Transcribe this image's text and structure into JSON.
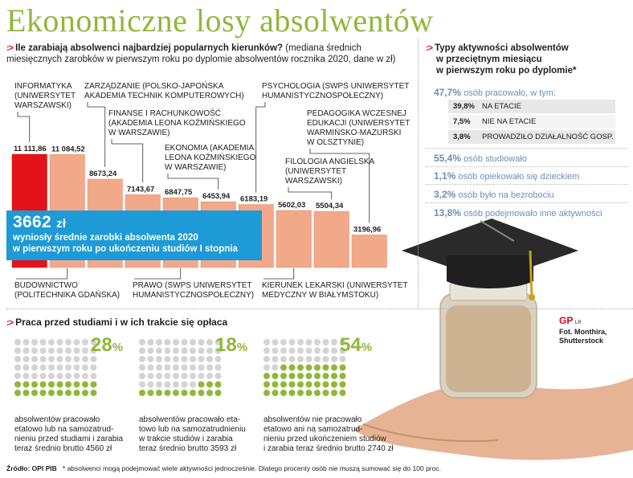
{
  "title": "Ekonomiczne losy absolwentów",
  "subtitle": {
    "bold": "Ile zarabiają absolwenci najbardziej popularnych kierunków?",
    "rest": "(mediana średnich miesięcznych zarobków w pierwszym roku po dyplomie absolwentów rocznika 2020, dane w zł)"
  },
  "chart_data": {
    "type": "bar",
    "title": "Ile zarabiają absolwenci najbardziej popularnych kierunków?",
    "ylabel": "",
    "categories": [
      "INFORMATYKA (UNIWERSYTET WARSZAWSKI)",
      "BUDOWNICTWO (POLITECHNIKA GDAŃSKA)",
      "ZARZĄDZANIE (POLSKO-JAPOŃSKA AKADEMIA TECHNIK KOMPUTEROWYCH)",
      "FINANSE I RACHUNKOWOŚĆ (AKADEMIA LEONA KOŹMIŃSKIEGO W WARSZAWIE)",
      "PRAWO (SWPS UNIWERSYTET HUMANISTYCZNOSPOŁECZNY)",
      "EKONOMIA (AKADEMIA LEONA KOŹMIŃSKIEGO W WARSZAWIE)",
      "PSYCHOLOGIA (SWPS UNIWERSYTET HUMANISTYCZNOSPOŁECZNY)",
      "KIERUNEK LEKARSKI (UNIWERSYTET MEDYCZNY W BIAŁYMSTOKU)",
      "FILOLOGIA ANGIELSKA (UNIWERSYTET WARSZAWSKI)",
      "PEDAGOGIKA WCZESNEJ EDUKACJI (UNIWERSYTET WARMIŃSKO-MAZURSKI W OLSZTYNIE)"
    ],
    "values": [
      11111.86,
      11084.52,
      8673.24,
      7143.67,
      6847.75,
      6453.94,
      6183.19,
      5602.03,
      5504.34,
      3196.96
    ],
    "value_labels": [
      "11 111,86",
      "11 084,52",
      "8673,24",
      "7143,67",
      "6847,75",
      "6453,94",
      "6183,19",
      "5602,03",
      "5504,34",
      "3196,96"
    ],
    "label_lines": [
      [
        "INFORMATYKA",
        "(UNIWERSYTET",
        "WARSZAWSKI)"
      ],
      [
        "BUDOWNICTWO",
        "(POLITECHNIKA GDAŃSKA)"
      ],
      [
        "ZARZĄDZANIE (POLSKO-JAPOŃSKA",
        "AKADEMIA TECHNIK KOMPUTEROWYCH)"
      ],
      [
        "FINANSE I RACHUNKOWOŚĆ",
        "(AKADEMIA LEONA KOŹMIŃSKIEGO",
        "W WARSZAWIE)"
      ],
      [
        "PRAWO (SWPS UNIWERSYTET",
        "HUMANISTYCZNOSPOŁECZNY)"
      ],
      [
        "EKONOMIA (AKADEMIA",
        "LEONA KOŹMIŃSKIEGO",
        "W WARSZAWIE)"
      ],
      [
        "PSYCHOLOGIA (SWPS UNIWERSYTET",
        "HUMANISTYCZNOSPOŁECZNY)"
      ],
      [
        "KIERUNEK LEKARSKI (UNIWERSYTET",
        "MEDYCZNY W BIAŁYMSTOKU)"
      ],
      [
        "FILOLOGIA ANGIELSKA",
        "(UNIWERSYTET",
        "WARSZAWSKI)"
      ],
      [
        "PEDAGOGIKA WCZESNEJ",
        "EDUKACJI (UNIWERSYTET",
        "WARMIŃSKO-MAZURSKI",
        "W OLSZTYNIE)"
      ]
    ],
    "colors": {
      "highlight": "#e3131b",
      "bar": "#f2a98a",
      "bar_border": "#e58a6c",
      "avg_box": "#1e9ad6"
    },
    "average": {
      "value": 3662,
      "label": "3662",
      "unit": "zł"
    }
  },
  "average_box": {
    "value": "3662",
    "unit": "zł",
    "line1": "wyniosły średnie zarobki absolwenta 2020",
    "line2": "w pierwszym roku po ukończeniu studiów I stopnia"
  },
  "activities": {
    "title_lines": [
      "Typy aktywności absolwentów",
      "w przeciętnym miesiącu",
      "w pierwszym roku po dyplomie*"
    ],
    "items": [
      {
        "pct": "47,7%",
        "text": "osób pracowało, w tym:"
      },
      {
        "pct": "55,4%",
        "text": "osób studiowało"
      },
      {
        "pct": "1,1%",
        "text": "osób opiekowało się dzieckiem"
      },
      {
        "pct": "3,2%",
        "text": "osób było na bezrobociu"
      },
      {
        "pct": "13,8%",
        "text": "osób podejmowało inne aktywności"
      }
    ],
    "subitems": [
      {
        "pct": "39,8%",
        "text": "NA ETACIE"
      },
      {
        "pct": "7,5%",
        "text": "NIE NA ETACIE"
      },
      {
        "pct": "3,8%",
        "text": "PROWADZIŁO DZIAŁALNOŚĆ GOSP."
      }
    ]
  },
  "work_section": {
    "title": "Praca przed studiami i w ich trakcie się opłaca",
    "dot_colors": {
      "active": "#8fb83a",
      "inactive": "#d4d4d4"
    },
    "groups": [
      {
        "pct": "28",
        "fraction": 0.28,
        "caption": [
          "absolwentów pracowało",
          "etatowo lub na samozatrud-",
          "nieniu przed studiami i zarabia",
          "teraz średnio brutto 4560 zł"
        ]
      },
      {
        "pct": "18",
        "fraction": 0.18,
        "caption": [
          "absolwentów pracowało eta-",
          "towo lub na samozatrudnieniu",
          "w trakcie studiów i zarabia",
          "teraz średnio brutto 3593 zł"
        ]
      },
      {
        "pct": "54",
        "fraction": 0.54,
        "caption": [
          "absolwentów nie pracowało",
          "etatowo ani na samozatrud-",
          "nieniu przed ukończeniem studiów",
          "i zarabia teraz średnio brutto 2740 zł"
        ]
      }
    ],
    "pct_sign": "%"
  },
  "credit": {
    "logo": "GP",
    "initials": "LR",
    "photo": [
      "Fot. Monthira,",
      "Shutterstock"
    ]
  },
  "footer": {
    "source": "Źródło: OPI PIB",
    "note": "* absolwenci mogą podejmować wiele aktywności jednocześnie. Dlatego procenty osób nie muszą sumować się do 100 proc."
  }
}
